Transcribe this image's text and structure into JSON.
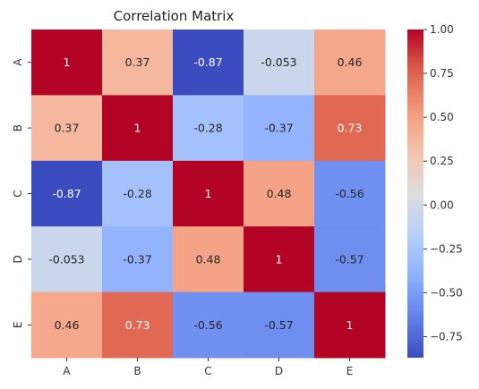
{
  "chart_data": {
    "type": "heatmap",
    "title": "Correlation Matrix",
    "x_categories": [
      "A",
      "B",
      "C",
      "D",
      "E"
    ],
    "y_categories": [
      "A",
      "B",
      "C",
      "D",
      "E"
    ],
    "values": [
      [
        1,
        0.37,
        -0.87,
        -0.053,
        0.46
      ],
      [
        0.37,
        1,
        -0.28,
        -0.37,
        0.73
      ],
      [
        -0.87,
        -0.28,
        1,
        0.48,
        -0.56
      ],
      [
        -0.053,
        -0.37,
        0.48,
        1,
        -0.57
      ],
      [
        0.46,
        0.73,
        -0.56,
        -0.57,
        1
      ]
    ],
    "value_labels": [
      [
        "1",
        "0.37",
        "-0.87",
        "-0.053",
        "0.46"
      ],
      [
        "0.37",
        "1",
        "-0.28",
        "-0.37",
        "0.73"
      ],
      [
        "-0.87",
        "-0.28",
        "1",
        "0.48",
        "-0.56"
      ],
      [
        "-0.053",
        "-0.37",
        "0.48",
        "1",
        "-0.57"
      ],
      [
        "0.46",
        "0.73",
        "-0.56",
        "-0.57",
        "1"
      ]
    ],
    "colormap": "coolwarm",
    "color_range": [
      -0.87,
      1.0
    ],
    "colorbar_ticks": [
      1.0,
      0.75,
      0.5,
      0.25,
      0.0,
      -0.25,
      -0.5,
      -0.75
    ],
    "colorbar_tick_labels": [
      "1.00",
      "0.75",
      "0.50",
      "0.25",
      "0.00",
      "−0.25",
      "−0.50",
      "−0.75"
    ],
    "colorbar_position": "right",
    "grid": false
  }
}
